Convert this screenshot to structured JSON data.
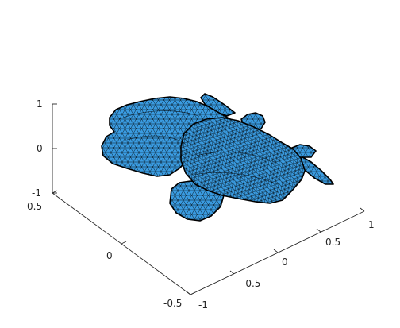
{
  "plot": {
    "surface_color": "#3a9be0",
    "edge_color": "#000000",
    "axis_color": "#262626"
  },
  "axes": {
    "z": {
      "ticks": [
        "1",
        "0",
        "-1"
      ]
    },
    "x": {
      "ticks": [
        "0.5",
        "0",
        "-0.5"
      ]
    },
    "y": {
      "ticks": [
        "-1",
        "-0.5",
        "0",
        "0.5",
        "1"
      ]
    }
  }
}
